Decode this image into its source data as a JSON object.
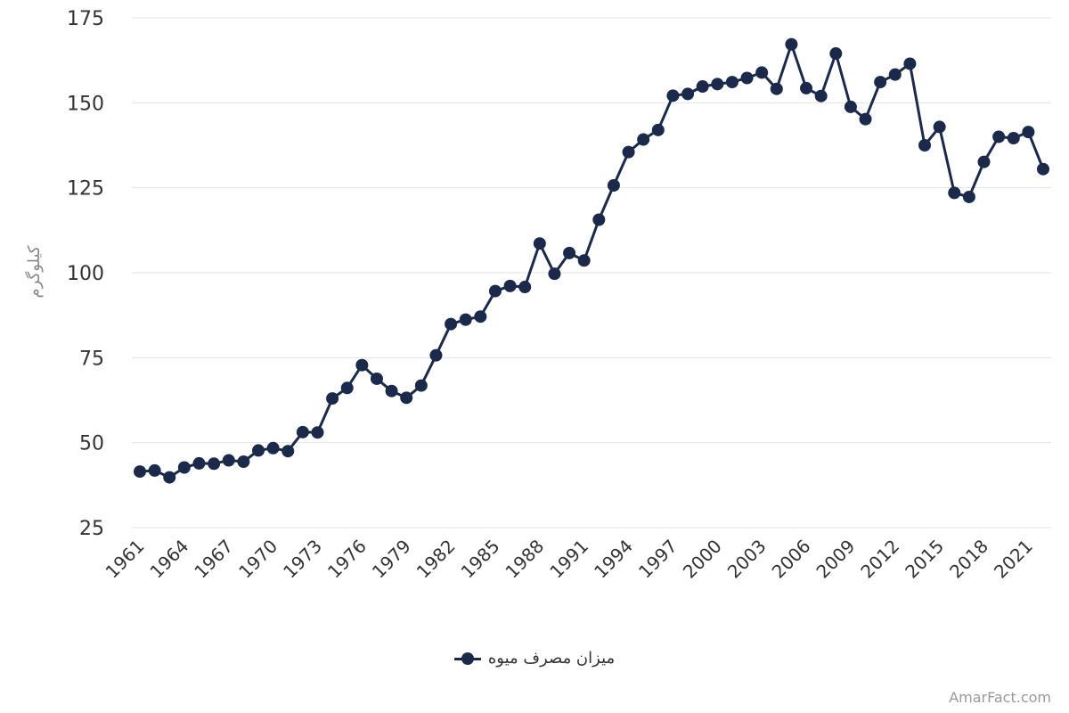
{
  "colors": {
    "series": "#1b2a4a",
    "grid": "#e3e3e3",
    "axis": "#333333"
  },
  "watermark": "AmarFact.com",
  "chart_data": {
    "type": "line",
    "title": "",
    "xlabel": "",
    "ylabel": "کیلوگرم",
    "ylim": [
      25,
      175
    ],
    "yticks": [
      25,
      50,
      75,
      100,
      125,
      150,
      175
    ],
    "xlim": [
      1961,
      2022
    ],
    "xticks": [
      1961,
      1964,
      1967,
      1970,
      1973,
      1976,
      1979,
      1982,
      1985,
      1988,
      1991,
      1994,
      1997,
      2000,
      2003,
      2006,
      2009,
      2012,
      2015,
      2018,
      2021
    ],
    "grid": true,
    "legend_position": "bottom",
    "series": [
      {
        "name": "میزان مصرف میوه",
        "x": [
          1961,
          1962,
          1963,
          1964,
          1965,
          1966,
          1967,
          1968,
          1969,
          1970,
          1971,
          1972,
          1973,
          1974,
          1975,
          1976,
          1977,
          1978,
          1979,
          1980,
          1981,
          1982,
          1983,
          1984,
          1985,
          1986,
          1987,
          1988,
          1989,
          1990,
          1991,
          1992,
          1993,
          1994,
          1995,
          1996,
          1997,
          1998,
          1999,
          2000,
          2001,
          2002,
          2003,
          2004,
          2005,
          2006,
          2007,
          2008,
          2009,
          2010,
          2011,
          2012,
          2013,
          2014,
          2015,
          2016,
          2017,
          2018,
          2019,
          2020,
          2021,
          2022
        ],
        "values": [
          41.5,
          41.8,
          39.8,
          42.7,
          43.9,
          43.8,
          44.8,
          44.4,
          47.7,
          48.4,
          47.5,
          53.1,
          53.0,
          63.0,
          66.1,
          72.8,
          68.8,
          65.2,
          63.2,
          66.8,
          75.7,
          84.9,
          86.2,
          87.1,
          94.6,
          96.1,
          95.8,
          108.6,
          99.7,
          105.8,
          103.6,
          115.6,
          125.7,
          135.5,
          139.2,
          142.0,
          152.1,
          152.6,
          154.8,
          155.5,
          156.1,
          157.3,
          158.9,
          154.1,
          167.2,
          154.3,
          152.0,
          164.5,
          148.8,
          145.2,
          156.1,
          158.3,
          161.5,
          137.5,
          142.9,
          123.5,
          122.3,
          132.6,
          140.0,
          139.6,
          141.4,
          130.5
        ]
      }
    ]
  }
}
